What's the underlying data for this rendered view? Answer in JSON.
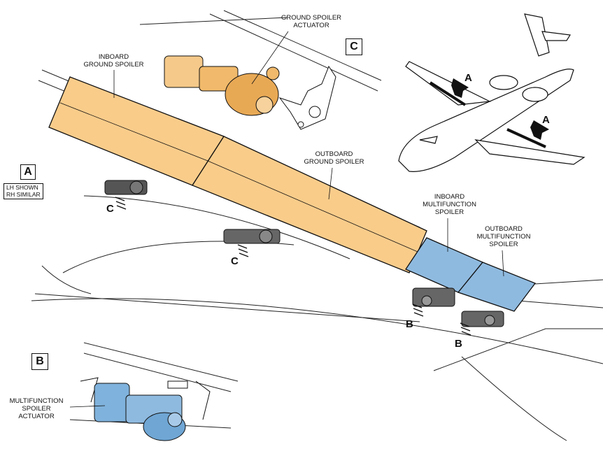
{
  "labels": {
    "ground_spoiler_actuator": [
      "GROUND SPOILER",
      "ACTUATOR"
    ],
    "inboard_ground_spoiler": [
      "INBOARD",
      "GROUND SPOILER"
    ],
    "outboard_ground_spoiler": [
      "OUTBOARD",
      "GROUND SPOILER"
    ],
    "inboard_multifunction_spoiler": [
      "INBOARD",
      "MULTIFUNCTION",
      "SPOILER"
    ],
    "outboard_multifunction_spoiler": [
      "OUTBOARD",
      "MULTIFUNCTION",
      "SPOILER"
    ],
    "multifunction_spoiler_actuator": [
      "MULTIFUNCTION",
      "SPOILER",
      "ACTUATOR"
    ]
  },
  "view_boxes": {
    "a": "A",
    "b": "B",
    "c": "C"
  },
  "view_note": [
    "LH SHOWN",
    "RH SIMILAR"
  ],
  "callouts": {
    "a1": "A",
    "a2": "A",
    "b1": "B",
    "b2": "B",
    "c1": "C",
    "c2": "C"
  },
  "colors": {
    "ground_spoiler_fill": "#f9cc8a",
    "multifunction_spoiler_fill": "#8fbadf",
    "outline": "#111111"
  }
}
